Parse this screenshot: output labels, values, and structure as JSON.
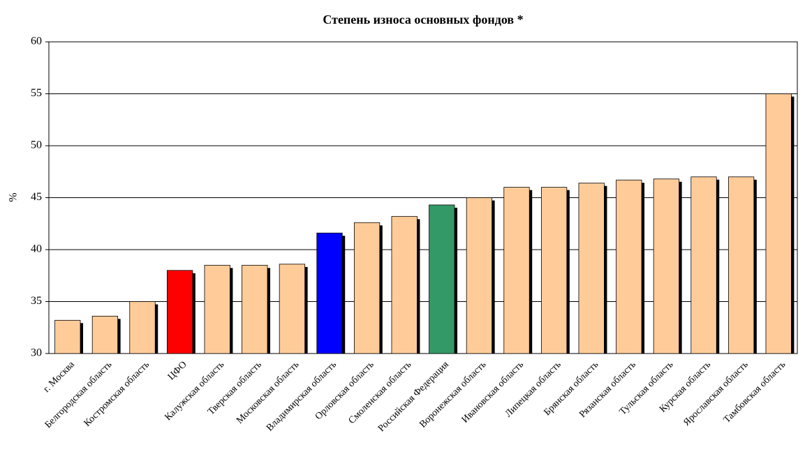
{
  "chart_data": {
    "type": "bar",
    "title": "Степень износа основных фондов *",
    "y_label": "%",
    "categories": [
      "г. Москва",
      "Белгородская область",
      "Костромская область",
      "ЦФО",
      "Калужская область",
      "Тверская область",
      "Московская область",
      "Владимирская область",
      "Орловская область",
      "Смоленская область",
      "Российская Федерация",
      "Воронежская область",
      "Ивановская область",
      "Липецкая область",
      "Брянская область",
      "Рязанская область",
      "Тульская область",
      "Курская область",
      "Ярославская область",
      "Тамбовская область"
    ],
    "values": [
      33.2,
      33.6,
      35.0,
      38.0,
      38.5,
      38.5,
      38.6,
      41.6,
      42.6,
      43.2,
      44.3,
      45.0,
      46.0,
      46.0,
      46.4,
      46.7,
      46.8,
      47.0,
      47.0,
      55.0
    ],
    "colors": [
      "#ffcc99",
      "#ffcc99",
      "#ffcc99",
      "#ff0000",
      "#ffcc99",
      "#ffcc99",
      "#ffcc99",
      "#0000ff",
      "#ffcc99",
      "#ffcc99",
      "#339966",
      "#ffcc99",
      "#ffcc99",
      "#ffcc99",
      "#ffcc99",
      "#ffcc99",
      "#ffcc99",
      "#ffcc99",
      "#ffcc99",
      "#ffcc99"
    ],
    "ylim": [
      30,
      60
    ],
    "yticks": [
      30,
      35,
      40,
      45,
      50,
      55,
      60
    ],
    "grid": true
  }
}
